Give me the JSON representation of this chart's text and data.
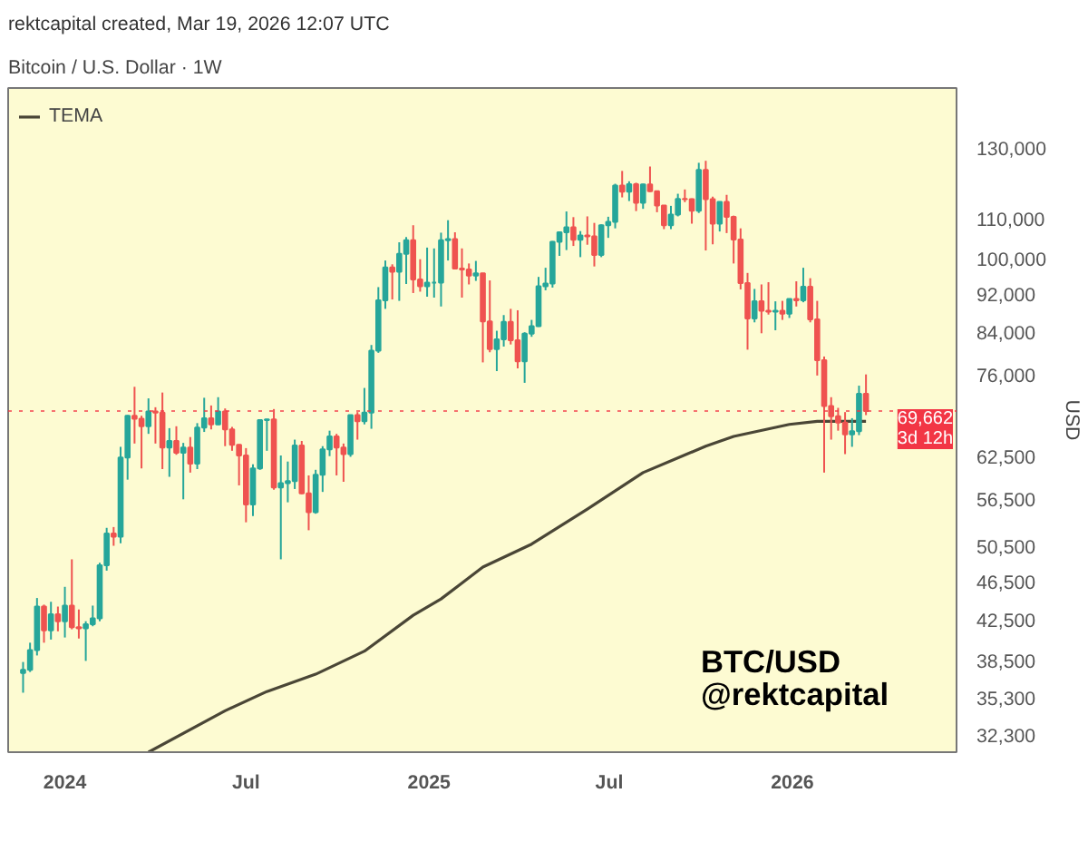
{
  "chart_data": {
    "type": "candlestick",
    "title": "Bitcoin / U.S. Dollar · 1W",
    "subtitle": "rektcapital created, Mar 19, 2026 12:07 UTC",
    "ylabel": "USD",
    "annotations": [
      "BTC/USD",
      "@rektcapital"
    ],
    "x": [
      "2023-11-20",
      "2023-11-27",
      "2023-12-04",
      "2023-12-11",
      "2023-12-18",
      "2023-12-25",
      "2024-01-01",
      "2024-01-08",
      "2024-01-15",
      "2024-01-22",
      "2024-01-29",
      "2024-02-05",
      "2024-02-12",
      "2024-02-19",
      "2024-02-26",
      "2024-03-04",
      "2024-03-11",
      "2024-03-18",
      "2024-03-25",
      "2024-04-01",
      "2024-04-08",
      "2024-04-15",
      "2024-04-22",
      "2024-04-29",
      "2024-05-06",
      "2024-05-13",
      "2024-05-20",
      "2024-05-27",
      "2024-06-03",
      "2024-06-10",
      "2024-06-17",
      "2024-06-24",
      "2024-07-01",
      "2024-07-08",
      "2024-07-15",
      "2024-07-22",
      "2024-07-29",
      "2024-08-05",
      "2024-08-12",
      "2024-08-19",
      "2024-08-26",
      "2024-09-02",
      "2024-09-09",
      "2024-09-16",
      "2024-09-23",
      "2024-09-30",
      "2024-10-07",
      "2024-10-14",
      "2024-10-21",
      "2024-10-28",
      "2024-11-04",
      "2024-11-11",
      "2024-11-18",
      "2024-11-25",
      "2024-12-02",
      "2024-12-09",
      "2024-12-16",
      "2024-12-23",
      "2024-12-30",
      "2025-01-06",
      "2025-01-13",
      "2025-01-20",
      "2025-01-27",
      "2025-02-03",
      "2025-02-10",
      "2025-02-17",
      "2025-02-24",
      "2025-03-03",
      "2025-03-10",
      "2025-03-17",
      "2025-03-24",
      "2025-03-31",
      "2025-04-07",
      "2025-04-14",
      "2025-04-21",
      "2025-04-28",
      "2025-05-05",
      "2025-05-12",
      "2025-05-19",
      "2025-05-26",
      "2025-06-02",
      "2025-06-09",
      "2025-06-16",
      "2025-06-23",
      "2025-06-30",
      "2025-07-07",
      "2025-07-14",
      "2025-07-21",
      "2025-07-28",
      "2025-08-04",
      "2025-08-11",
      "2025-08-18",
      "2025-08-25",
      "2025-09-01",
      "2025-09-08",
      "2025-09-15",
      "2025-09-22",
      "2025-09-29",
      "2025-10-06",
      "2025-10-13",
      "2025-10-20",
      "2025-10-27",
      "2025-11-03",
      "2025-11-10",
      "2025-11-17",
      "2025-11-24",
      "2025-12-01",
      "2025-12-08",
      "2025-12-15",
      "2025-12-22",
      "2025-12-29",
      "2026-01-05",
      "2026-01-12",
      "2026-01-19",
      "2026-01-26",
      "2026-02-02",
      "2026-02-09",
      "2026-02-16",
      "2026-02-23",
      "2026-03-02",
      "2026-03-09",
      "2026-03-16"
    ],
    "ohlc": [
      [
        37400,
        38400,
        35700,
        37700
      ],
      [
        37700,
        40200,
        37500,
        39500
      ],
      [
        39500,
        44700,
        39000,
        43800
      ],
      [
        43800,
        44000,
        40200,
        41400
      ],
      [
        41400,
        44300,
        40500,
        43000
      ],
      [
        43000,
        43800,
        41300,
        42300
      ],
      [
        42300,
        45900,
        40700,
        43900
      ],
      [
        43900,
        49000,
        41500,
        41700
      ],
      [
        41700,
        43500,
        40600,
        41600
      ],
      [
        41600,
        42300,
        38500,
        42000
      ],
      [
        42000,
        43900,
        41800,
        42600
      ],
      [
        42600,
        48600,
        42300,
        48300
      ],
      [
        48300,
        52800,
        47700,
        52100
      ],
      [
        52100,
        52900,
        50600,
        51700
      ],
      [
        51700,
        64000,
        50900,
        62400
      ],
      [
        62400,
        69000,
        59200,
        68900
      ],
      [
        68900,
        73800,
        64500,
        68400
      ],
      [
        68400,
        68900,
        60800,
        67200
      ],
      [
        67200,
        71800,
        66000,
        69600
      ],
      [
        69600,
        70300,
        64500,
        69400
      ],
      [
        69400,
        72800,
        60700,
        63900
      ],
      [
        63900,
        66900,
        59600,
        64900
      ],
      [
        64900,
        67200,
        62800,
        63100
      ],
      [
        63100,
        64600,
        56500,
        63900
      ],
      [
        63900,
        65500,
        60200,
        61500
      ],
      [
        61500,
        67700,
        60700,
        67000
      ],
      [
        67000,
        71900,
        66300,
        68500
      ],
      [
        68500,
        70600,
        66700,
        67500
      ],
      [
        67500,
        72000,
        67400,
        69600
      ],
      [
        69600,
        70100,
        64100,
        66700
      ],
      [
        66700,
        67100,
        63400,
        64300
      ],
      [
        64300,
        64400,
        58400,
        62700
      ],
      [
        62700,
        63800,
        53500,
        55800
      ],
      [
        55800,
        61400,
        54300,
        60800
      ],
      [
        60800,
        68300,
        60600,
        68200
      ],
      [
        68200,
        68400,
        63400,
        68300
      ],
      [
        68300,
        70000,
        57800,
        58100
      ],
      [
        58100,
        62700,
        49000,
        58700
      ],
      [
        58700,
        61800,
        56100,
        59000
      ],
      [
        59000,
        65100,
        57900,
        64200
      ],
      [
        64200,
        64900,
        57200,
        57300
      ],
      [
        57300,
        59800,
        52500,
        54800
      ],
      [
        54800,
        60600,
        54600,
        59900
      ],
      [
        59900,
        64100,
        57500,
        63600
      ],
      [
        63600,
        66500,
        62600,
        65600
      ],
      [
        65600,
        66000,
        59800,
        63900
      ],
      [
        63900,
        64500,
        58900,
        62900
      ],
      [
        62900,
        69000,
        62500,
        69000
      ],
      [
        69000,
        69500,
        65100,
        68000
      ],
      [
        68000,
        73600,
        67500,
        69400
      ],
      [
        69400,
        81500,
        66800,
        80400
      ],
      [
        80400,
        93500,
        80000,
        90600
      ],
      [
        90600,
        99600,
        88800,
        98000
      ],
      [
        98000,
        98700,
        90800,
        97000
      ],
      [
        97000,
        104000,
        90500,
        101200
      ],
      [
        101200,
        105300,
        94200,
        104500
      ],
      [
        104500,
        108300,
        92200,
        95200
      ],
      [
        95200,
        99900,
        92500,
        93700
      ],
      [
        93700,
        102700,
        91400,
        94500
      ],
      [
        94500,
        102500,
        91200,
        94500
      ],
      [
        94500,
        106400,
        89300,
        104500
      ],
      [
        104500,
        109600,
        99600,
        104800
      ],
      [
        104800,
        106500,
        97500,
        97700
      ],
      [
        97700,
        102500,
        91200,
        97500
      ],
      [
        97500,
        98900,
        94100,
        96100
      ],
      [
        96100,
        99500,
        94900,
        96600
      ],
      [
        96600,
        96700,
        78200,
        86200
      ],
      [
        86200,
        95000,
        80100,
        80700
      ],
      [
        80700,
        84300,
        76600,
        82600
      ],
      [
        82600,
        87500,
        81200,
        86100
      ],
      [
        86100,
        88800,
        81600,
        82400
      ],
      [
        82400,
        88500,
        77100,
        78400
      ],
      [
        78400,
        84000,
        74500,
        83700
      ],
      [
        83700,
        86500,
        83100,
        85200
      ],
      [
        85200,
        95800,
        85100,
        93700
      ],
      [
        93700,
        97900,
        92800,
        94300
      ],
      [
        94300,
        104300,
        93400,
        104100
      ],
      [
        104100,
        106700,
        100700,
        106500
      ],
      [
        106500,
        111900,
        102100,
        107800
      ],
      [
        107800,
        110400,
        103100,
        104600
      ],
      [
        104600,
        106800,
        100400,
        105700
      ],
      [
        105700,
        110600,
        103400,
        105500
      ],
      [
        105500,
        108900,
        98200,
        100900
      ],
      [
        100900,
        108500,
        100400,
        108300
      ],
      [
        108300,
        110500,
        105100,
        109200
      ],
      [
        109200,
        119500,
        107500,
        119000
      ],
      [
        119000,
        123200,
        115700,
        117300
      ],
      [
        117300,
        120200,
        114700,
        119400
      ],
      [
        119400,
        119800,
        112000,
        114200
      ],
      [
        114200,
        119500,
        112600,
        119300
      ],
      [
        119300,
        124500,
        117200,
        117400
      ],
      [
        117400,
        117600,
        111700,
        113500
      ],
      [
        113500,
        113600,
        107300,
        108300
      ],
      [
        108300,
        113400,
        107300,
        111100
      ],
      [
        111100,
        116700,
        110600,
        115300
      ],
      [
        115300,
        117900,
        114400,
        115200
      ],
      [
        115200,
        115400,
        108700,
        112100
      ],
      [
        112100,
        125600,
        111500,
        123500
      ],
      [
        123500,
        126200,
        102000,
        115200
      ],
      [
        115200,
        115900,
        103500,
        108700
      ],
      [
        108700,
        114600,
        106700,
        114500
      ],
      [
        114500,
        116400,
        106300,
        110500
      ],
      [
        110500,
        110800,
        98900,
        104700
      ],
      [
        104700,
        107500,
        93000,
        94400
      ],
      [
        94400,
        96700,
        80600,
        86800
      ],
      [
        86800,
        93100,
        86000,
        90400
      ],
      [
        90400,
        94100,
        83800,
        88400
      ],
      [
        88400,
        94600,
        87600,
        88200
      ],
      [
        88200,
        90400,
        84400,
        88400
      ],
      [
        88400,
        90500,
        86500,
        87800
      ],
      [
        87800,
        91000,
        86900,
        90900
      ],
      [
        90900,
        94800,
        89300,
        90600
      ],
      [
        90600,
        97900,
        90200,
        93600
      ],
      [
        93600,
        95500,
        86000,
        86600
      ],
      [
        86600,
        90500,
        75800,
        78600
      ],
      [
        78600,
        79300,
        60200,
        70500
      ],
      [
        70500,
        72000,
        65100,
        68800
      ],
      [
        68800,
        70200,
        66500,
        67800
      ],
      [
        67800,
        69500,
        62900,
        65900
      ],
      [
        65900,
        68500,
        64000,
        66400
      ],
      [
        66400,
        74000,
        65800,
        72600
      ],
      [
        72600,
        76000,
        69000,
        69662
      ]
    ],
    "colors": [
      "#26a69a",
      "#26a69a",
      "#26a69a",
      "#ef5350",
      "#26a69a",
      "#ef5350",
      "#26a69a",
      "#ef5350",
      "#ef5350",
      "#26a69a",
      "#26a69a",
      "#26a69a",
      "#26a69a",
      "#ef5350",
      "#26a69a",
      "#26a69a",
      "#ef5350",
      "#ef5350",
      "#26a69a",
      "#ef5350",
      "#ef5350",
      "#26a69a",
      "#ef5350",
      "#26a69a",
      "#ef5350",
      "#26a69a",
      "#26a69a",
      "#ef5350",
      "#26a69a",
      "#ef5350",
      "#ef5350",
      "#ef5350",
      "#ef5350",
      "#26a69a",
      "#26a69a",
      "#26a69a",
      "#ef5350",
      "#26a69a",
      "#26a69a",
      "#26a69a",
      "#ef5350",
      "#ef5350",
      "#26a69a",
      "#26a69a",
      "#26a69a",
      "#ef5350",
      "#ef5350",
      "#26a69a",
      "#ef5350",
      "#26a69a",
      "#26a69a",
      "#26a69a",
      "#26a69a",
      "#ef5350",
      "#26a69a",
      "#26a69a",
      "#ef5350",
      "#ef5350",
      "#26a69a",
      "#26a69a",
      "#26a69a",
      "#26a69a",
      "#ef5350",
      "#ef5350",
      "#ef5350",
      "#26a69a",
      "#ef5350",
      "#ef5350",
      "#26a69a",
      "#26a69a",
      "#ef5350",
      "#ef5350",
      "#26a69a",
      "#26a69a",
      "#26a69a",
      "#26a69a",
      "#26a69a",
      "#26a69a",
      "#26a69a",
      "#ef5350",
      "#26a69a",
      "#ef5350",
      "#ef5350",
      "#26a69a",
      "#26a69a",
      "#26a69a",
      "#ef5350",
      "#26a69a",
      "#ef5350",
      "#26a69a",
      "#ef5350",
      "#ef5350",
      "#ef5350",
      "#26a69a",
      "#26a69a",
      "#ef5350",
      "#ef5350",
      "#26a69a",
      "#ef5350",
      "#ef5350",
      "#26a69a",
      "#ef5350",
      "#ef5350",
      "#ef5350",
      "#ef5350",
      "#26a69a",
      "#ef5350",
      "#ef5350",
      "#26a69a",
      "#ef5350",
      "#26a69a",
      "#ef5350",
      "#26a69a",
      "#ef5350",
      "#ef5350",
      "#ef5350",
      "#ef5350",
      "#ef5350",
      "#ef5350",
      "#26a69a",
      "#26a69a",
      "#ef5350"
    ],
    "series": [
      {
        "type": "line",
        "name": "TEMA",
        "color": "#4a4636",
        "x": [
          "2024-03-25",
          "2024-06-10",
          "2024-07-22",
          "2024-09-09",
          "2024-10-28",
          "2024-12-16",
          "2025-01-13",
          "2025-02-24",
          "2025-04-14",
          "2025-06-09",
          "2025-08-04",
          "2025-10-06",
          "2025-11-03",
          "2025-12-29",
          "2026-01-26",
          "2026-03-16"
        ],
        "values": [
          31000,
          34200,
          35800,
          37300,
          39400,
          42900,
          44600,
          48100,
          50800,
          55200,
          60200,
          64100,
          65600,
          67500,
          68000,
          68000
        ]
      }
    ],
    "ref_lines": [
      {
        "axis": "y",
        "value": 69662,
        "label": "69,662\n3d 12h",
        "color": "#f23645",
        "line_style": "dotted"
      }
    ],
    "log": "y",
    "xlim": [
      "2023-11-05",
      "2026-06-15"
    ],
    "ylim": [
      31000,
      150000
    ],
    "xticks": [
      {
        "value": "2024-01-01",
        "label": "2024"
      },
      {
        "value": "2024-07-01",
        "label": "Jul"
      },
      {
        "value": "2025-01-01",
        "label": "2025"
      },
      {
        "value": "2025-07-01",
        "label": "Jul"
      },
      {
        "value": "2026-01-01",
        "label": "2026"
      }
    ],
    "yticks": [
      {
        "value": 130000,
        "label": "130,000"
      },
      {
        "value": 110000,
        "label": "110,000"
      },
      {
        "value": 100000,
        "label": "100,000"
      },
      {
        "value": 92000,
        "label": "92,000"
      },
      {
        "value": 84000,
        "label": "84,000"
      },
      {
        "value": 76000,
        "label": "76,000"
      },
      {
        "value": 62500,
        "label": "62,500"
      },
      {
        "value": 56500,
        "label": "56,500"
      },
      {
        "value": 50500,
        "label": "50,500"
      },
      {
        "value": 46500,
        "label": "46,500"
      },
      {
        "value": 42500,
        "label": "42,500"
      },
      {
        "value": 38500,
        "label": "38,500"
      },
      {
        "value": 35300,
        "label": "35,300"
      },
      {
        "value": 32300,
        "label": "32,300"
      }
    ],
    "legend": "top left",
    "grid": false
  }
}
